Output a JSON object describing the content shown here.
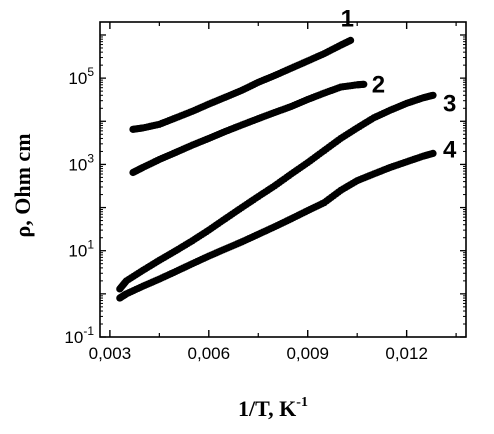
{
  "chart_data": {
    "type": "scatter",
    "title": "",
    "xlabel": "1/T, K",
    "xlabel_sup": "-1",
    "ylabel": "ρ, Ohm cm",
    "x_scale": "linear",
    "y_scale": "log",
    "xlim": [
      0.0027,
      0.0138
    ],
    "ylim": [
      0.1,
      2000000
    ],
    "x_ticks": [
      {
        "value": 0.003,
        "label": "0,003"
      },
      {
        "value": 0.006,
        "label": "0,006"
      },
      {
        "value": 0.009,
        "label": "0,009"
      },
      {
        "value": 0.012,
        "label": "0,012"
      }
    ],
    "y_ticks": [
      {
        "value": 0.1,
        "base": "10",
        "exp": "-1"
      },
      {
        "value": 10,
        "base": "10",
        "exp": "1"
      },
      {
        "value": 1000,
        "base": "10",
        "exp": "3"
      },
      {
        "value": 100000,
        "base": "10",
        "exp": "5"
      }
    ],
    "grid": false,
    "legend": "none",
    "marker_color": "#000000",
    "series": [
      {
        "label": "1",
        "x": [
          0.0037,
          0.004,
          0.0045,
          0.005,
          0.0055,
          0.006,
          0.0065,
          0.007,
          0.0075,
          0.008,
          0.0085,
          0.009,
          0.0095,
          0.01,
          0.0103
        ],
        "y": [
          6500,
          7000,
          8500,
          12000,
          17000,
          25000,
          36000,
          52000,
          80000,
          115000,
          170000,
          250000,
          370000,
          580000,
          750000
        ]
      },
      {
        "label": "2",
        "x": [
          0.0037,
          0.004,
          0.0045,
          0.005,
          0.0055,
          0.006,
          0.0065,
          0.007,
          0.0075,
          0.008,
          0.0085,
          0.009,
          0.0095,
          0.01,
          0.0105,
          0.0107
        ],
        "y": [
          650,
          850,
          1300,
          1900,
          2800,
          4000,
          5800,
          8200,
          11500,
          16000,
          22000,
          32000,
          45000,
          62000,
          70000,
          72000
        ]
      },
      {
        "label": "3",
        "x": [
          0.0033,
          0.0035,
          0.004,
          0.0045,
          0.005,
          0.0055,
          0.006,
          0.0065,
          0.007,
          0.0075,
          0.008,
          0.0085,
          0.009,
          0.0095,
          0.01,
          0.0105,
          0.011,
          0.0115,
          0.012,
          0.0125,
          0.0128
        ],
        "y": [
          1.3,
          2.0,
          3.5,
          6.0,
          10,
          17,
          30,
          55,
          100,
          180,
          320,
          600,
          1100,
          2100,
          4000,
          7000,
          12000,
          18000,
          26000,
          35000,
          40000
        ]
      },
      {
        "label": "4",
        "x": [
          0.0033,
          0.0035,
          0.004,
          0.0045,
          0.005,
          0.0055,
          0.006,
          0.0065,
          0.007,
          0.0075,
          0.008,
          0.0085,
          0.009,
          0.0095,
          0.01,
          0.0105,
          0.011,
          0.0115,
          0.012,
          0.0125,
          0.0128
        ],
        "y": [
          0.8,
          1.0,
          1.5,
          2.2,
          3.3,
          5.0,
          7.5,
          11,
          16,
          24,
          36,
          55,
          85,
          130,
          250,
          420,
          600,
          850,
          1150,
          1550,
          1800
        ]
      }
    ]
  }
}
